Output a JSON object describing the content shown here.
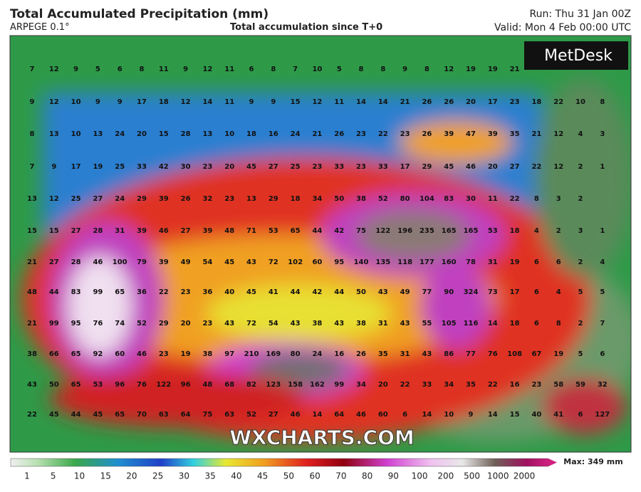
{
  "header": {
    "title": "Total Accumulated Precipitation (mm)",
    "model": "ARPEGE 0.1°",
    "subtitle": "Total accumulation since T+0",
    "run": "Run: Thu 31 Jan 00Z",
    "valid": "Valid: Mon 4 Feb 00:00 UTC"
  },
  "logo": "MetDesk",
  "watermark": "WXCHARTS.COM",
  "grid": [
    [
      7,
      12,
      9,
      5,
      6,
      8,
      11,
      9,
      12,
      11,
      6,
      8,
      7,
      10,
      5,
      8,
      8,
      9,
      8,
      12,
      19,
      19,
      21,
      null,
      null,
      null,
      null
    ],
    [
      9,
      12,
      10,
      9,
      9,
      17,
      18,
      12,
      14,
      11,
      9,
      9,
      15,
      12,
      11,
      14,
      14,
      21,
      26,
      26,
      20,
      17,
      23,
      18,
      22,
      10,
      8
    ],
    [
      8,
      13,
      10,
      13,
      24,
      20,
      15,
      28,
      13,
      10,
      18,
      16,
      24,
      21,
      26,
      23,
      22,
      23,
      26,
      39,
      47,
      39,
      35,
      21,
      12,
      4,
      3
    ],
    [
      7,
      9,
      17,
      19,
      25,
      33,
      42,
      30,
      23,
      20,
      45,
      27,
      25,
      23,
      33,
      23,
      33,
      17,
      29,
      45,
      46,
      20,
      27,
      22,
      12,
      2,
      1
    ],
    [
      13,
      12,
      25,
      27,
      24,
      29,
      39,
      26,
      32,
      23,
      13,
      29,
      18,
      34,
      50,
      38,
      52,
      80,
      104,
      83,
      30,
      11,
      22,
      8,
      3,
      2,
      null
    ],
    [
      15,
      15,
      27,
      28,
      31,
      39,
      46,
      27,
      39,
      48,
      71,
      53,
      65,
      44,
      42,
      75,
      122,
      196,
      235,
      165,
      165,
      53,
      18,
      4,
      2,
      3,
      1
    ],
    [
      21,
      27,
      28,
      46,
      100,
      79,
      39,
      49,
      54,
      45,
      43,
      72,
      102,
      60,
      95,
      140,
      135,
      118,
      177,
      160,
      78,
      31,
      19,
      6,
      6,
      2,
      4
    ],
    [
      48,
      44,
      83,
      99,
      65,
      36,
      22,
      23,
      36,
      40,
      45,
      41,
      44,
      42,
      44,
      50,
      43,
      49,
      77,
      90,
      324,
      73,
      17,
      6,
      4,
      5,
      5
    ],
    [
      21,
      99,
      95,
      76,
      74,
      52,
      29,
      20,
      23,
      43,
      72,
      54,
      43,
      38,
      43,
      38,
      31,
      43,
      55,
      105,
      116,
      14,
      18,
      6,
      8,
      2,
      7
    ],
    [
      38,
      66,
      65,
      92,
      60,
      46,
      23,
      19,
      38,
      97,
      210,
      169,
      80,
      24,
      16,
      26,
      35,
      31,
      43,
      86,
      77,
      76,
      108,
      67,
      19,
      5,
      6
    ],
    [
      43,
      50,
      65,
      53,
      96,
      76,
      122,
      96,
      48,
      68,
      82,
      123,
      158,
      162,
      99,
      34,
      20,
      22,
      33,
      34,
      35,
      22,
      16,
      23,
      58,
      59,
      32
    ],
    [
      22,
      45,
      44,
      45,
      65,
      70,
      63,
      64,
      75,
      63,
      52,
      27,
      46,
      14,
      64,
      46,
      60,
      6,
      14,
      10,
      9,
      14,
      15,
      40,
      41,
      6,
      127
    ]
  ],
  "colorbar": {
    "labels": [
      1,
      5,
      10,
      15,
      20,
      25,
      30,
      35,
      40,
      45,
      50,
      60,
      70,
      80,
      90,
      100,
      200,
      500,
      1000,
      2000
    ],
    "max": "Max: 349 mm"
  }
}
